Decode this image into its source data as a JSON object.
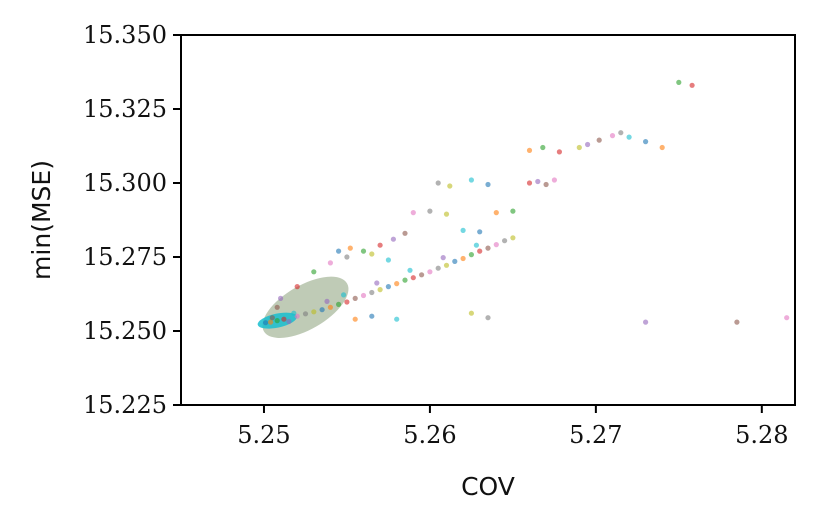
{
  "chart_data": {
    "type": "scatter",
    "title": "",
    "xlabel": "COV",
    "ylabel": "min(MSE)",
    "xlim": [
      5.245,
      5.282
    ],
    "ylim": [
      15.225,
      15.35
    ],
    "x_ticks": [
      "5.25",
      "5.26",
      "5.27",
      "5.28"
    ],
    "x_tick_values": [
      5.25,
      5.26,
      5.27,
      5.28
    ],
    "y_ticks": [
      "15.225",
      "15.250",
      "15.275",
      "15.300",
      "15.325",
      "15.350"
    ],
    "y_tick_values": [
      15.225,
      15.25,
      15.275,
      15.3,
      15.325,
      15.35
    ],
    "grid": false,
    "legend": "none",
    "point_colors": [
      "#1f77b4",
      "#ff7f0e",
      "#2ca02c",
      "#d62728",
      "#9467bd",
      "#8c564b",
      "#e377c2",
      "#7f7f7f",
      "#bcbd22",
      "#17becf"
    ],
    "dense_core": {
      "x_range": [
        5.25,
        5.256
      ],
      "y_range": [
        15.252,
        15.268
      ],
      "color": "#17becf"
    },
    "points": [
      [
        5.2501,
        15.2528
      ],
      [
        5.2504,
        15.253
      ],
      [
        5.2508,
        15.2535
      ],
      [
        5.2512,
        15.254
      ],
      [
        5.2515,
        15.2532
      ],
      [
        5.2505,
        15.2545
      ],
      [
        5.252,
        15.255
      ],
      [
        5.2525,
        15.2558
      ],
      [
        5.253,
        15.2565
      ],
      [
        5.2518,
        15.256
      ],
      [
        5.2535,
        15.2572
      ],
      [
        5.254,
        15.258
      ],
      [
        5.2545,
        15.259
      ],
      [
        5.255,
        15.2598
      ],
      [
        5.2538,
        15.26
      ],
      [
        5.2555,
        15.261
      ],
      [
        5.256,
        15.262
      ],
      [
        5.2565,
        15.263
      ],
      [
        5.257,
        15.264
      ],
      [
        5.2548,
        15.2622
      ],
      [
        5.2575,
        15.265
      ],
      [
        5.258,
        15.266
      ],
      [
        5.2585,
        15.2672
      ],
      [
        5.259,
        15.268
      ],
      [
        5.2568,
        15.2662
      ],
      [
        5.2595,
        15.269
      ],
      [
        5.26,
        15.27
      ],
      [
        5.2605,
        15.2712
      ],
      [
        5.261,
        15.2722
      ],
      [
        5.2588,
        15.2705
      ],
      [
        5.2615,
        15.2735
      ],
      [
        5.262,
        15.2745
      ],
      [
        5.2625,
        15.2758
      ],
      [
        5.263,
        15.277
      ],
      [
        5.2608,
        15.2748
      ],
      [
        5.2635,
        15.278
      ],
      [
        5.264,
        15.2792
      ],
      [
        5.2645,
        15.2805
      ],
      [
        5.265,
        15.2815
      ],
      [
        5.2628,
        15.279
      ],
      [
        5.2545,
        15.277
      ],
      [
        5.2552,
        15.278
      ],
      [
        5.256,
        15.277
      ],
      [
        5.257,
        15.279
      ],
      [
        5.2578,
        15.281
      ],
      [
        5.2585,
        15.283
      ],
      [
        5.259,
        15.29
      ],
      [
        5.26,
        15.2905
      ],
      [
        5.261,
        15.2895
      ],
      [
        5.262,
        15.284
      ],
      [
        5.263,
        15.2835
      ],
      [
        5.264,
        15.29
      ],
      [
        5.265,
        15.2905
      ],
      [
        5.266,
        15.3
      ],
      [
        5.2665,
        15.3005
      ],
      [
        5.267,
        15.2995
      ],
      [
        5.2675,
        15.301
      ],
      [
        5.2605,
        15.3
      ],
      [
        5.2612,
        15.299
      ],
      [
        5.2625,
        15.301
      ],
      [
        5.2635,
        15.2995
      ],
      [
        5.266,
        15.311
      ],
      [
        5.2668,
        15.312
      ],
      [
        5.2678,
        15.3105
      ],
      [
        5.2695,
        15.313
      ],
      [
        5.2702,
        15.3145
      ],
      [
        5.271,
        15.316
      ],
      [
        5.2715,
        15.317
      ],
      [
        5.269,
        15.312
      ],
      [
        5.272,
        15.3155
      ],
      [
        5.273,
        15.314
      ],
      [
        5.274,
        15.312
      ],
      [
        5.275,
        15.334
      ],
      [
        5.2758,
        15.333
      ],
      [
        5.273,
        15.253
      ],
      [
        5.2785,
        15.253
      ],
      [
        5.2815,
        15.2545
      ],
      [
        5.2635,
        15.2545
      ],
      [
        5.2625,
        15.256
      ],
      [
        5.258,
        15.254
      ],
      [
        5.2565,
        15.255
      ],
      [
        5.2555,
        15.254
      ],
      [
        5.253,
        15.27
      ],
      [
        5.252,
        15.265
      ],
      [
        5.251,
        15.261
      ],
      [
        5.2508,
        15.258
      ],
      [
        5.254,
        15.273
      ],
      [
        5.255,
        15.275
      ],
      [
        5.2565,
        15.276
      ],
      [
        5.2575,
        15.274
      ]
    ]
  }
}
